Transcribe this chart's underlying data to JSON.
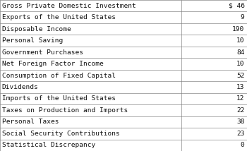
{
  "rows": [
    [
      "Gross Private Domestic Investment",
      "$ 46"
    ],
    [
      "Exports of the United States",
      "9"
    ],
    [
      "Disposable Income",
      "190"
    ],
    [
      "Personal Saving",
      "10"
    ],
    [
      "Government Purchases",
      "84"
    ],
    [
      "Net Foreign Factor Income",
      "10"
    ],
    [
      "Consumption of Fixed Capital",
      "52"
    ],
    [
      "Dividends",
      "13"
    ],
    [
      "Imports of the United States",
      "12"
    ],
    [
      "Taxes on Production and Imports",
      "22"
    ],
    [
      "Personal Taxes",
      "38"
    ],
    [
      "Social Security Contributions",
      "23"
    ],
    [
      "Statistical Discrepancy",
      "0"
    ]
  ],
  "col_split": 0.735,
  "bg_color": "#ffffff",
  "border_color": "#888888",
  "font_family": "monospace",
  "font_size": 6.8,
  "text_color": "#111111",
  "fig_width": 3.5,
  "fig_height": 2.14,
  "dpi": 100
}
